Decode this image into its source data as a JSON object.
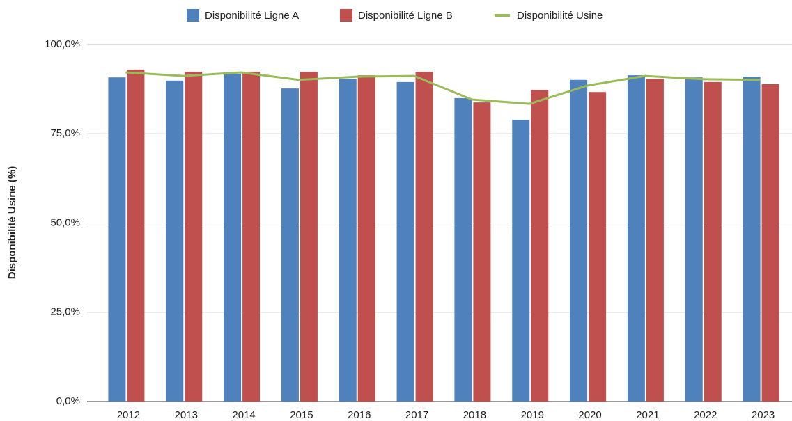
{
  "chart_data": {
    "type": "bar_line",
    "ylabel": "Disponibilité Usine (%)",
    "categories": [
      "2012",
      "2013",
      "2014",
      "2015",
      "2016",
      "2017",
      "2018",
      "2019",
      "2020",
      "2021",
      "2022",
      "2023"
    ],
    "series": [
      {
        "name": "Disponibilité Ligne A",
        "type": "bar",
        "color": "#4f81bd",
        "values": [
          90.8,
          89.9,
          91.8,
          87.7,
          90.4,
          89.5,
          85.0,
          78.9,
          90.1,
          91.4,
          90.8,
          91.0
        ]
      },
      {
        "name": "Disponibilité Ligne B",
        "type": "bar",
        "color": "#c0504d",
        "values": [
          93.0,
          92.4,
          92.4,
          92.4,
          91.4,
          92.4,
          83.8,
          87.3,
          86.7,
          90.4,
          89.5,
          88.9
        ]
      },
      {
        "name": "Disponibilité Usine",
        "type": "line",
        "color": "#9bbb59",
        "values": [
          92.2,
          91.2,
          92.2,
          90.1,
          91.0,
          91.2,
          84.6,
          83.4,
          88.5,
          91.2,
          90.3,
          90.1
        ]
      }
    ],
    "ylim": [
      0,
      100
    ],
    "yticks": [
      {
        "value": 0,
        "label": "0,0%"
      },
      {
        "value": 25,
        "label": "25,0%"
      },
      {
        "value": 50,
        "label": "50,0%"
      },
      {
        "value": 75,
        "label": "75,0%"
      },
      {
        "value": 100,
        "label": "100,0%"
      }
    ],
    "grid": true,
    "legend": "top"
  }
}
